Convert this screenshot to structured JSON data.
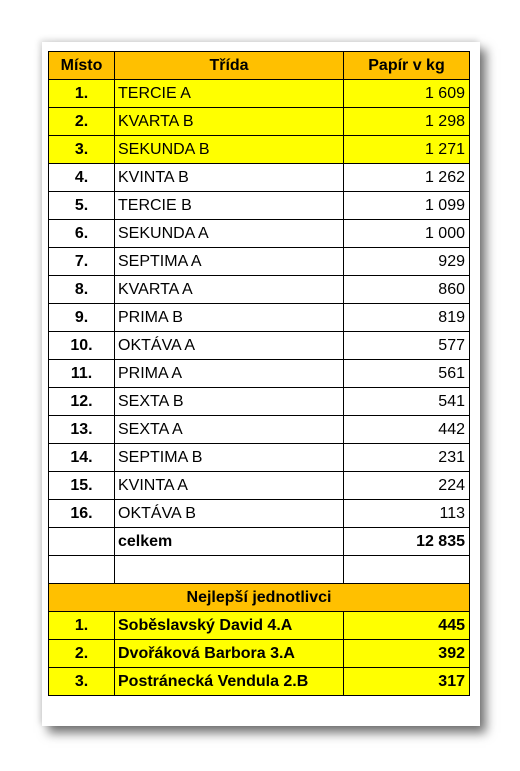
{
  "header": {
    "col_place": "Místo",
    "col_class": "Třída",
    "col_paper": "Papír v kg"
  },
  "rows": [
    {
      "place": "1.",
      "cls": "TERCIE A",
      "kg": "1 609"
    },
    {
      "place": "2.",
      "cls": "KVARTA B",
      "kg": "1 298"
    },
    {
      "place": "3.",
      "cls": "SEKUNDA B",
      "kg": "1 271"
    },
    {
      "place": "4.",
      "cls": "KVINTA B",
      "kg": "1 262"
    },
    {
      "place": "5.",
      "cls": "TERCIE B",
      "kg": "1 099"
    },
    {
      "place": "6.",
      "cls": "SEKUNDA A",
      "kg": "1 000"
    },
    {
      "place": "7.",
      "cls": "SEPTIMA A",
      "kg": "929"
    },
    {
      "place": "8.",
      "cls": "KVARTA A",
      "kg": "860"
    },
    {
      "place": "9.",
      "cls": "PRIMA B",
      "kg": "819"
    },
    {
      "place": "10.",
      "cls": "OKTÁVA A",
      "kg": "577"
    },
    {
      "place": "11.",
      "cls": "PRIMA A",
      "kg": "561"
    },
    {
      "place": "12.",
      "cls": "SEXTA B",
      "kg": "541"
    },
    {
      "place": "13.",
      "cls": "SEXTA A",
      "kg": "442"
    },
    {
      "place": "14.",
      "cls": "SEPTIMA B",
      "kg": "231"
    },
    {
      "place": "15.",
      "cls": "KVINTA A",
      "kg": "224"
    },
    {
      "place": "16.",
      "cls": "OKTÁVA B",
      "kg": "113"
    }
  ],
  "total": {
    "label": "celkem",
    "value": "12 835"
  },
  "individuals": {
    "title": "Nejlepší jednotlivci",
    "rows": [
      {
        "place": "1.",
        "name": "Soběslavský David 4.A",
        "kg": "445"
      },
      {
        "place": "2.",
        "name": "Dvořáková  Barbora 3.A",
        "kg": "392"
      },
      {
        "place": "3.",
        "name": "Postránecká Vendula 2.B",
        "kg": "317"
      }
    ]
  },
  "colors": {
    "header": "#ffc000",
    "highlight": "#ffff00"
  }
}
